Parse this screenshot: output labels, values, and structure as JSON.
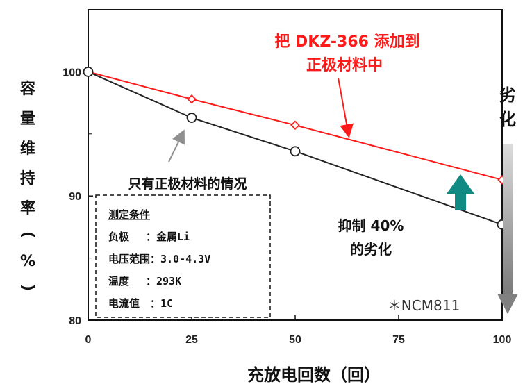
{
  "chart_data": {
    "type": "line",
    "xlabel": "充放电回数（回）",
    "ylabel_chars": [
      "容",
      "量",
      "维",
      "持",
      "率",
      "(",
      "%",
      ")"
    ],
    "xlim": [
      0,
      100
    ],
    "ylim": [
      80,
      105
    ],
    "xticks": [
      0,
      25,
      50,
      75,
      100
    ],
    "yticks": [
      80,
      90,
      100
    ],
    "x": [
      0,
      25,
      50,
      100
    ],
    "series": [
      {
        "name": "把 DKZ-366 添加到正极材料中",
        "color": "#ff1a1a",
        "marker": "diamond",
        "values": [
          100,
          97.8,
          95.7,
          91.3
        ]
      },
      {
        "name": "只有正极材料的情况",
        "color": "#222222",
        "marker": "circle",
        "values": [
          100,
          96.3,
          93.6,
          87.7
        ]
      }
    ]
  },
  "annotations": {
    "red_label_line1": "把 DKZ-366 添加到",
    "red_label_line2": "正极材料中",
    "black_label": "只有正极材料的情况",
    "effect_line1": "抑制 40%",
    "effect_line2": "的劣化",
    "degrade_char1": "劣",
    "degrade_char2": "化",
    "note": "＊NCM811",
    "conditions_title": "测定条件",
    "conditions": [
      "负极　 ：金属Li",
      "电压范围：3.0-4.3V",
      "温度　 ：293K",
      "电流值　：1C"
    ]
  },
  "colors": {
    "improve_arrow": "#108a82",
    "degrade_arrow": "#808080"
  }
}
